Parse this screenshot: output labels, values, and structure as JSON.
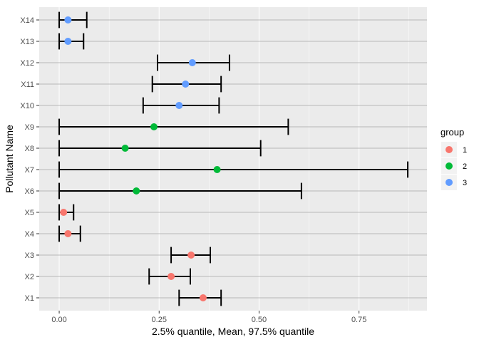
{
  "chart_data": {
    "type": "scatter",
    "subtype": "point-with-horizontal-errorbars",
    "xlabel": "2.5% quantile, Mean, 97.5% quantile",
    "ylabel": "Pollutant Name",
    "xlim": [
      -0.05,
      0.92
    ],
    "xticks": [
      0,
      0.25,
      0.5,
      0.75
    ],
    "xtick_labels": [
      "0.00",
      "0.25",
      "0.50",
      "0.75"
    ],
    "categories": [
      "X1",
      "X2",
      "X3",
      "X4",
      "X5",
      "X6",
      "X7",
      "X8",
      "X9",
      "X10",
      "X11",
      "X12",
      "X13",
      "X14"
    ],
    "legend": {
      "title": "group",
      "position": "right",
      "entries": [
        {
          "label": "1",
          "color": "#F8766D"
        },
        {
          "label": "2",
          "color": "#00BA38"
        },
        {
          "label": "3",
          "color": "#619CFF"
        }
      ]
    },
    "points": [
      {
        "category": "X1",
        "group": "1",
        "lower": 0.3,
        "mean": 0.36,
        "upper": 0.405
      },
      {
        "category": "X2",
        "group": "1",
        "lower": 0.225,
        "mean": 0.28,
        "upper": 0.328
      },
      {
        "category": "X3",
        "group": "1",
        "lower": 0.28,
        "mean": 0.33,
        "upper": 0.378
      },
      {
        "category": "X4",
        "group": "1",
        "lower": 0.0,
        "mean": 0.022,
        "upper": 0.053
      },
      {
        "category": "X5",
        "group": "1",
        "lower": 0.0,
        "mean": 0.011,
        "upper": 0.036
      },
      {
        "category": "X6",
        "group": "2",
        "lower": 0.0,
        "mean": 0.193,
        "upper": 0.606
      },
      {
        "category": "X7",
        "group": "2",
        "lower": 0.0,
        "mean": 0.395,
        "upper": 0.872
      },
      {
        "category": "X8",
        "group": "2",
        "lower": 0.0,
        "mean": 0.165,
        "upper": 0.504
      },
      {
        "category": "X9",
        "group": "2",
        "lower": 0.0,
        "mean": 0.237,
        "upper": 0.573
      },
      {
        "category": "X10",
        "group": "3",
        "lower": 0.21,
        "mean": 0.3,
        "upper": 0.4
      },
      {
        "category": "X11",
        "group": "3",
        "lower": 0.233,
        "mean": 0.316,
        "upper": 0.405
      },
      {
        "category": "X12",
        "group": "3",
        "lower": 0.246,
        "mean": 0.333,
        "upper": 0.426
      },
      {
        "category": "X13",
        "group": "3",
        "lower": 0.0,
        "mean": 0.022,
        "upper": 0.061
      },
      {
        "category": "X14",
        "group": "3",
        "lower": 0.0,
        "mean": 0.022,
        "upper": 0.069
      }
    ],
    "style": {
      "panel_background": "#EBEBEB",
      "gridline_color": "#FFFFFF",
      "category_gridline_color": "#A6A6A6",
      "errorbar_color": "#000000"
    },
    "grid": true
  }
}
